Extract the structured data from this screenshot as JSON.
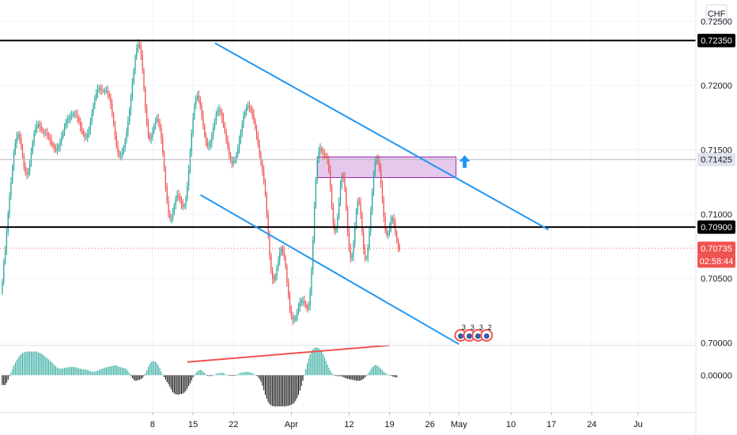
{
  "chart_data": [
    {
      "type": "candlestick",
      "instrument_currency": "CHF",
      "colors": {
        "up": "#26a69a",
        "down": "#ef5350",
        "trendline": "#2196f3",
        "level": "#000000",
        "zone_fill": "#e1bee7",
        "zone_border": "#9c27b0",
        "current_price": "#ef5350",
        "grid": "#f0f3fa"
      },
      "y_axis": {
        "range": [
          0.69985,
          0.72665
        ],
        "ticks": [
          "0.72500",
          "0.72000",
          "0.71500",
          "0.71000",
          "0.70500",
          "0.70000"
        ]
      },
      "x_axis": {
        "range_days": [
          -18.4,
          102
        ],
        "ticks": [
          {
            "label": "8",
            "day": 8
          },
          {
            "label": "15",
            "day": 15
          },
          {
            "label": "22",
            "day": 22
          },
          {
            "label": "Apr",
            "day": 32
          },
          {
            "label": "12",
            "day": 42
          },
          {
            "label": "19",
            "day": 49
          },
          {
            "label": "26",
            "day": 56
          },
          {
            "label": "May",
            "day": 61
          },
          {
            "label": "10",
            "day": 70
          },
          {
            "label": "17",
            "day": 77
          },
          {
            "label": "24",
            "day": 84
          },
          {
            "label": "Ju",
            "day": 92
          }
        ]
      },
      "price_tags": [
        {
          "label": "0.72350",
          "value": 0.7235,
          "style": "level"
        },
        {
          "label": "0.71425",
          "value": 0.71425,
          "style": "grey"
        },
        {
          "label": "0.70900",
          "value": 0.709,
          "style": "level"
        },
        {
          "label": "0.70735",
          "value": 0.70735,
          "style": "current"
        },
        {
          "label": "02:58:44",
          "value": 0.70735,
          "style": "countdown"
        }
      ],
      "horizontal_levels": [
        {
          "value": 0.7235,
          "color": "#000000"
        },
        {
          "value": 0.709,
          "color": "#000000"
        },
        {
          "value": 0.71425,
          "color": "#b2b5be"
        }
      ],
      "current_price": 0.70735,
      "trendlines": [
        {
          "from": [
            18.8,
            0.7233
          ],
          "to": [
            76.5,
            0.7088
          ]
        },
        {
          "from": [
            16.3,
            0.7115
          ],
          "to": [
            61.0,
            0.6999
          ]
        }
      ],
      "zone": {
        "from_day": 36.5,
        "to_day": 60.5,
        "top": 0.71445,
        "bottom": 0.71285
      },
      "arrow": {
        "day": 62.0,
        "value": 0.7136,
        "direction": "up"
      },
      "events": [
        {
          "day": 61.3,
          "label": "3"
        },
        {
          "day": 62.8,
          "label": "3"
        },
        {
          "day": 64.3,
          "label": "3"
        },
        {
          "day": 65.8,
          "label": "2"
        }
      ],
      "candles": {
        "start_day": -18.0,
        "step_days": 0.25,
        "open": 0.7039,
        "closes": [
          0.7048,
          0.7063,
          0.7072,
          0.7086,
          0.7101,
          0.7114,
          0.7125,
          0.7137,
          0.7148,
          0.7155,
          0.716,
          0.7162,
          0.7159,
          0.7153,
          0.7145,
          0.7137,
          0.7132,
          0.7131,
          0.7134,
          0.714,
          0.7148,
          0.7156,
          0.7163,
          0.7167,
          0.7169,
          0.717,
          0.7168,
          0.7166,
          0.7164,
          0.7163,
          0.7163,
          0.7162,
          0.716,
          0.7158,
          0.7155,
          0.7153,
          0.7151,
          0.715,
          0.7151,
          0.7153,
          0.7156,
          0.716,
          0.7164,
          0.7168,
          0.7171,
          0.7173,
          0.7175,
          0.7176,
          0.7177,
          0.7178,
          0.7178,
          0.7177,
          0.7175,
          0.7172,
          0.7168,
          0.7165,
          0.7162,
          0.716,
          0.716,
          0.7162,
          0.7166,
          0.7172,
          0.7178,
          0.7185,
          0.719,
          0.7194,
          0.7197,
          0.7198,
          0.7197,
          0.7196,
          0.7196,
          0.7196,
          0.7196,
          0.7194,
          0.7191,
          0.7186,
          0.7178,
          0.717,
          0.7161,
          0.7153,
          0.7148,
          0.7146,
          0.7146,
          0.7148,
          0.7152,
          0.7157,
          0.7164,
          0.7172,
          0.7181,
          0.7191,
          0.7202,
          0.7212,
          0.7222,
          0.7229,
          0.7232,
          0.7231,
          0.7224,
          0.7212,
          0.7197,
          0.7182,
          0.717,
          0.7162,
          0.7159,
          0.716,
          0.7164,
          0.7169,
          0.7173,
          0.7174,
          0.7172,
          0.7167,
          0.7159,
          0.7148,
          0.7135,
          0.7121,
          0.711,
          0.7101,
          0.7097,
          0.7097,
          0.7101,
          0.7107,
          0.7112,
          0.7115,
          0.7114,
          0.7111,
          0.7108,
          0.7106,
          0.7107,
          0.7112,
          0.7122,
          0.7134,
          0.7149,
          0.7163,
          0.7175,
          0.7185,
          0.719,
          0.7192,
          0.719,
          0.7184,
          0.7177,
          0.7169,
          0.7161,
          0.7156,
          0.7153,
          0.7153,
          0.7156,
          0.7161,
          0.7167,
          0.7173,
          0.7178,
          0.718,
          0.7181,
          0.7179,
          0.7175,
          0.717,
          0.7164,
          0.7158,
          0.7152,
          0.7146,
          0.7142,
          0.714,
          0.7141,
          0.7143,
          0.7146,
          0.7151,
          0.7157,
          0.7164,
          0.717,
          0.7176,
          0.718,
          0.7183,
          0.7184,
          0.7183,
          0.7181,
          0.7178,
          0.7173,
          0.7167,
          0.7161,
          0.7154,
          0.7147,
          0.714,
          0.7134,
          0.7126,
          0.7115,
          0.71,
          0.7083,
          0.7068,
          0.7056,
          0.705,
          0.7049,
          0.7052,
          0.7058,
          0.7064,
          0.707,
          0.7073,
          0.7072,
          0.7067,
          0.7059,
          0.7047,
          0.7036,
          0.7027,
          0.7021,
          0.7018,
          0.7018,
          0.702,
          0.7024,
          0.7028,
          0.7031,
          0.7033,
          0.7033,
          0.7031,
          0.7028,
          0.7027,
          0.7029,
          0.7039,
          0.7057,
          0.708,
          0.7106,
          0.7127,
          0.7142,
          0.7149,
          0.7151,
          0.7149,
          0.7147,
          0.7146,
          0.7145,
          0.7142,
          0.7134,
          0.7121,
          0.7106,
          0.7093,
          0.7087,
          0.7089,
          0.7098,
          0.711,
          0.7122,
          0.713,
          0.7129,
          0.712,
          0.7104,
          0.7086,
          0.7073,
          0.7066,
          0.7068,
          0.7077,
          0.709,
          0.7103,
          0.711,
          0.7109,
          0.71,
          0.7086,
          0.7073,
          0.7066,
          0.7066,
          0.7074,
          0.7087,
          0.7102,
          0.7118,
          0.7131,
          0.714,
          0.7144,
          0.7142,
          0.7135,
          0.7124,
          0.7111,
          0.7098,
          0.7088,
          0.7084,
          0.7085,
          0.709,
          0.7095,
          0.7097,
          0.7093,
          0.7086,
          0.7079,
          0.7074,
          0.7073
        ]
      }
    },
    {
      "type": "histogram",
      "y_axis": {
        "ticks": [
          "0.00000"
        ],
        "range": [
          -1.1,
          0.9
        ],
        "zero": 0
      },
      "divergence_line": {
        "from": [
          14.0,
          0.4
        ],
        "to": [
          49.0,
          0.91
        ]
      },
      "colors": {
        "positive": "#26a69a",
        "negative": "#000000",
        "divergence": "#ef5350"
      },
      "values": [
        -0.3,
        -0.3,
        -0.3,
        -0.23,
        -0.14,
        -0.03,
        0.08,
        0.19,
        0.3,
        0.38,
        0.46,
        0.53,
        0.6,
        0.64,
        0.67,
        0.69,
        0.71,
        0.72,
        0.72,
        0.72,
        0.72,
        0.72,
        0.72,
        0.72,
        0.72,
        0.69,
        0.68,
        0.66,
        0.63,
        0.59,
        0.55,
        0.52,
        0.48,
        0.44,
        0.4,
        0.36,
        0.31,
        0.27,
        0.23,
        0.21,
        0.2,
        0.2,
        0.21,
        0.22,
        0.23,
        0.24,
        0.24,
        0.25,
        0.25,
        0.25,
        0.25,
        0.24,
        0.22,
        0.21,
        0.2,
        0.19,
        0.18,
        0.18,
        0.17,
        0.16,
        0.14,
        0.12,
        0.11,
        0.1,
        0.11,
        0.12,
        0.14,
        0.16,
        0.18,
        0.2,
        0.21,
        0.23,
        0.24,
        0.25,
        0.26,
        0.27,
        0.28,
        0.3,
        0.3,
        0.29,
        0.27,
        0.25,
        0.24,
        0.23,
        0.22,
        0.21,
        0.18,
        0.13,
        0.06,
        -0.02,
        -0.09,
        -0.14,
        -0.17,
        -0.17,
        -0.15,
        -0.14,
        -0.12,
        -0.09,
        -0.03,
        0.05,
        0.15,
        0.25,
        0.34,
        0.4,
        0.43,
        0.42,
        0.4,
        0.36,
        0.3,
        0.21,
        0.11,
        0.02,
        -0.06,
        -0.14,
        -0.21,
        -0.28,
        -0.36,
        -0.44,
        -0.52,
        -0.56,
        -0.58,
        -0.59,
        -0.59,
        -0.58,
        -0.57,
        -0.56,
        -0.53,
        -0.48,
        -0.41,
        -0.33,
        -0.25,
        -0.16,
        -0.07,
        0.01,
        0.07,
        0.12,
        0.15,
        0.16,
        0.15,
        0.11,
        0.07,
        0.03,
        -0.01,
        -0.02,
        -0.03,
        -0.02,
        0.0,
        0.02,
        0.04,
        0.05,
        0.06,
        0.07,
        0.07,
        0.06,
        0.04,
        0.02,
        -0.0,
        -0.01,
        -0.02,
        -0.02,
        -0.02,
        -0.01,
        0.01,
        0.03,
        0.05,
        0.07,
        0.08,
        0.09,
        0.1,
        0.1,
        0.1,
        0.09,
        0.08,
        0.06,
        0.04,
        0.02,
        -0.01,
        -0.05,
        -0.12,
        -0.2,
        -0.32,
        -0.46,
        -0.6,
        -0.72,
        -0.82,
        -0.88,
        -0.92,
        -0.94,
        -0.95,
        -0.95,
        -0.95,
        -0.95,
        -0.95,
        -0.95,
        -0.95,
        -0.95,
        -0.95,
        -0.94,
        -0.93,
        -0.92,
        -0.9,
        -0.88,
        -0.84,
        -0.78,
        -0.7,
        -0.6,
        -0.47,
        -0.33,
        -0.17,
        0.01,
        0.18,
        0.36,
        0.51,
        0.64,
        0.73,
        0.79,
        0.83,
        0.84,
        0.84,
        0.82,
        0.78,
        0.72,
        0.64,
        0.54,
        0.44,
        0.33,
        0.23,
        0.14,
        0.07,
        0.02,
        -0.01,
        -0.02,
        -0.03,
        -0.03,
        -0.03,
        -0.04,
        -0.06,
        -0.08,
        -0.1,
        -0.11,
        -0.12,
        -0.13,
        -0.14,
        -0.15,
        -0.16,
        -0.17,
        -0.17,
        -0.17,
        -0.16,
        -0.14,
        -0.11,
        -0.07,
        -0.02,
        0.04,
        0.1,
        0.17,
        0.24,
        0.28,
        0.31,
        0.3,
        0.28,
        0.24,
        0.2,
        0.15,
        0.1,
        0.07,
        0.04,
        0.02,
        0.0,
        -0.02,
        -0.04,
        -0.05,
        -0.06,
        -0.07
      ]
    }
  ]
}
